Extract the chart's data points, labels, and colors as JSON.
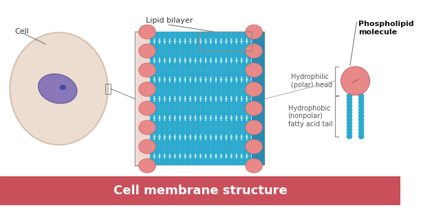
{
  "bg_color": "#ffffff",
  "footer_color": "#c94f5a",
  "footer_text": "Cell membrane structure",
  "footer_text_color": "#ffffff",
  "cell_outer_color": "#ecddd0",
  "cell_outer_edge": "#d4c0b0",
  "cell_nucleus_color": "#8878b8",
  "cell_nucleus_edge": "#6860a0",
  "cell_label": "Cell",
  "bilayer_label": "Lipid bilayer",
  "phospholipid_label": "Phospholipid\nmolecule",
  "hydrophilic_label": "Hydrophilic\n(polar) head",
  "hydrophobic_label": "Hydrophobic\n(nonpolar)\nfatty acid tail",
  "head_color": "#e88888",
  "head_edge": "#c86868",
  "tail_color": "#2aaace",
  "bilayer_bg_color": "#3aaccf",
  "bilayer_light_stripe": "#c8e8f0",
  "bilayer_side_color": "#f0d8d0",
  "bilayer_dark_right": "#2a8ab0",
  "annotation_color": "#666666",
  "label_fontsize": 7,
  "footer_fontsize": 13
}
